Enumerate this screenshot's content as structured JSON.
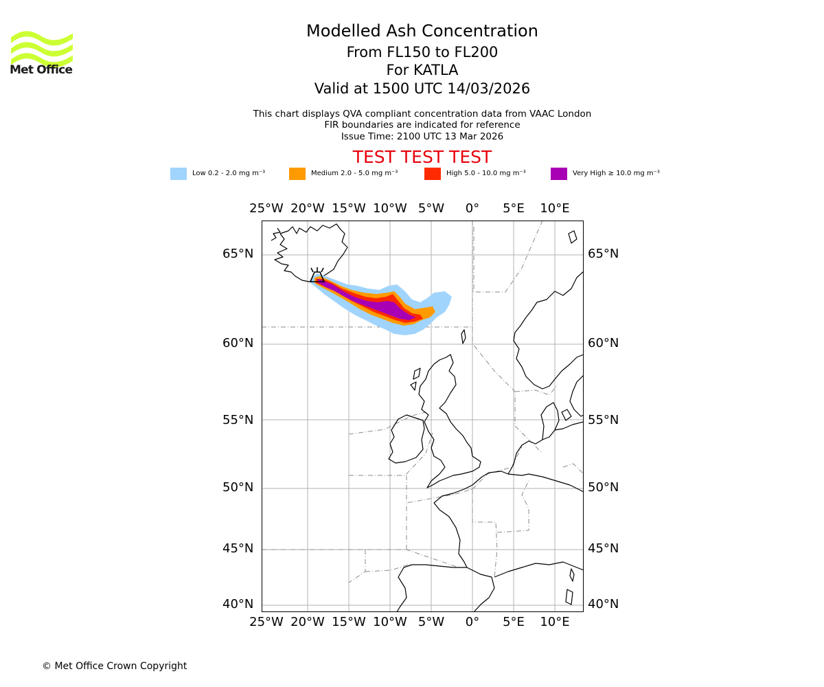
{
  "brand": {
    "name": "Met Office",
    "logo_color": "#ccff33"
  },
  "header": {
    "title": "Modelled Ash Concentration",
    "level_range": "From FL150 to FL200",
    "volcano": "For KATLA",
    "valid_time": "Valid at 1500 UTC 14/03/2026",
    "note_line1": "This chart displays QVA compliant concentration data from VAAC London",
    "note_line2": "FIR boundaries are indicated for reference",
    "issue_time": "Issue Time: 2100 UTC 13 Mar 2026",
    "test_banner": "TEST TEST TEST"
  },
  "legend": [
    {
      "label": "Low 0.2 - 2.0 mg m⁻³",
      "color": "#a0d4fc"
    },
    {
      "label": "Medium 2.0 - 5.0 mg m⁻³",
      "color": "#ff9a00"
    },
    {
      "label": "High 5.0 - 10.0 mg m⁻³",
      "color": "#ff2a00"
    },
    {
      "label": "Very High  ≥  10.0 mg m⁻³",
      "color": "#a800b4"
    }
  ],
  "map": {
    "lon_ticks": [
      "25°W",
      "20°W",
      "15°W",
      "10°W",
      "5°W",
      "0°",
      "5°E",
      "10°E"
    ],
    "lat_ticks": [
      "65°N",
      "60°N",
      "55°N",
      "50°N",
      "45°N",
      "40°N"
    ],
    "extent": {
      "lon_min": -26,
      "lon_max": 13,
      "lat_min": 39.5,
      "lat_max": 67
    },
    "grid": true
  },
  "footer": {
    "copyright": "© Met Office Crown Copyright"
  }
}
